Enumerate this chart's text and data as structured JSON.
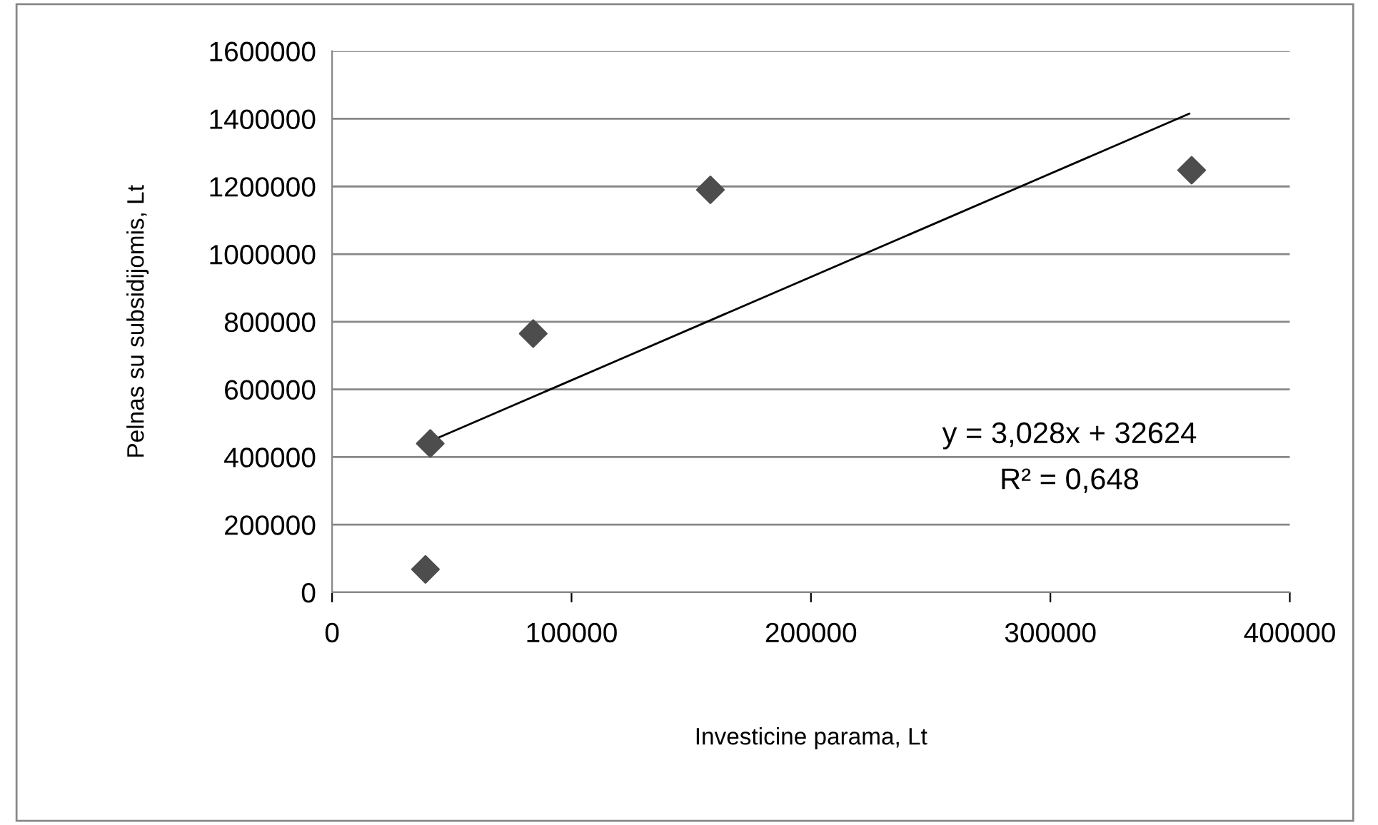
{
  "chart_data": {
    "type": "scatter",
    "xlabel": "Investicine parama, Lt",
    "ylabel": "Pelnas su subsidijomis, Lt",
    "series": [
      {
        "color": "#4d4d4d",
        "marker": "diamond",
        "x": [
          39000,
          41000,
          84000,
          158000,
          359000
        ],
        "values": [
          68000,
          440000,
          765000,
          1190000,
          1248000
        ]
      },
      {
        "type": "line",
        "color": "#000000",
        "marker": "none",
        "x": [
          42000,
          358000
        ],
        "values": [
          450000,
          1415000
        ]
      }
    ],
    "annotations": [
      "y = 3,028x + 32624",
      "R² = 0,648"
    ],
    "xlim": [
      0,
      400000
    ],
    "xticks": [
      0,
      100000,
      200000,
      300000,
      400000
    ],
    "ylim": [
      0,
      1600000
    ],
    "yticks": [
      0,
      200000,
      400000,
      600000,
      800000,
      1000000,
      1200000,
      1400000,
      1600000
    ],
    "grid": "y"
  }
}
